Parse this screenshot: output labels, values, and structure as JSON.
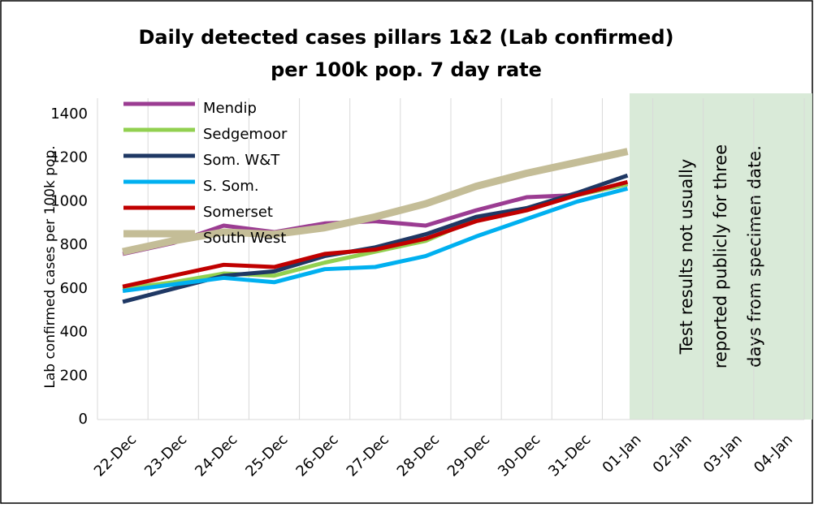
{
  "chart_data": {
    "type": "line",
    "title": [
      "Daily detected cases pillars 1&2 (Lab confirmed)",
      "per 100k pop. 7 day rate"
    ],
    "y_label": "Lab confirmed cases per 100k pop.",
    "annotation": [
      "Test results not usually",
      "reported publicly for three",
      "days from specimen date."
    ],
    "categories": [
      "22-Dec",
      "23-Dec",
      "24-Dec",
      "25-Dec",
      "26-Dec",
      "27-Dec",
      "28-Dec",
      "29-Dec",
      "30-Dec",
      "31-Dec",
      "01-Jan",
      "02-Jan",
      "03-Jan",
      "04-Jan"
    ],
    "series": [
      {
        "name": "Mendip",
        "color": "#9b3c92",
        "values": [
          760,
          810,
          890,
          860,
          900,
          910,
          890,
          960,
          1020,
          1030,
          1080,
          null,
          null,
          null
        ]
      },
      {
        "name": "Sedgemoor",
        "color": "#92d050",
        "values": [
          600,
          630,
          670,
          660,
          720,
          770,
          820,
          920,
          970,
          1030,
          1080,
          null,
          null,
          null
        ]
      },
      {
        "name": "Som. W&T",
        "color": "#1f3864",
        "values": [
          540,
          600,
          660,
          680,
          750,
          790,
          850,
          930,
          970,
          1040,
          1120,
          null,
          null,
          null
        ]
      },
      {
        "name": "S. Som.",
        "color": "#00b0f0",
        "values": [
          590,
          620,
          650,
          630,
          690,
          700,
          750,
          840,
          920,
          1000,
          1060,
          null,
          null,
          null
        ]
      },
      {
        "name": "Somerset",
        "color": "#c00000",
        "values": [
          610,
          660,
          710,
          700,
          760,
          780,
          830,
          910,
          960,
          1030,
          1090,
          null,
          null,
          null
        ]
      },
      {
        "name": "South West",
        "color": "#c4bd97",
        "values": [
          770,
          820,
          860,
          850,
          880,
          930,
          990,
          1070,
          1130,
          1180,
          1230,
          null,
          null,
          null
        ]
      }
    ],
    "ylim": [
      0,
      1400
    ],
    "yticks": [
      0,
      200,
      400,
      600,
      800,
      1000,
      1200,
      1400
    ],
    "grid": false
  }
}
